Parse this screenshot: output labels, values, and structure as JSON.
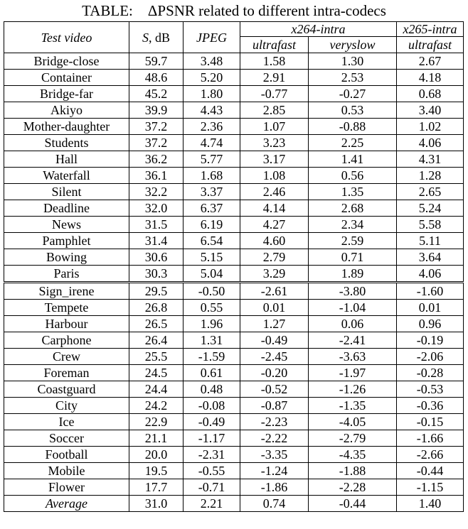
{
  "caption": "TABLE:    ΔPSNR related to different intra-codecs",
  "headers": {
    "test_video": "Test video",
    "s_db": "S, dB",
    "jpeg": "JPEG",
    "x264": "x264-intra",
    "x265": "x265-intra",
    "ultrafast": "ultrafast",
    "veryslow": "veryslow",
    "ultrafast2": "ultrafast"
  },
  "group1": [
    [
      "Bridge-close",
      "59.7",
      "3.48",
      "1.58",
      "1.30",
      "2.67"
    ],
    [
      "Container",
      "48.6",
      "5.20",
      "2.91",
      "2.53",
      "4.18"
    ],
    [
      "Bridge-far",
      "45.2",
      "1.80",
      "-0.77",
      "-0.27",
      "0.68"
    ],
    [
      "Akiyo",
      "39.9",
      "4.43",
      "2.85",
      "0.53",
      "3.40"
    ],
    [
      "Mother-daughter",
      "37.2",
      "2.36",
      "1.07",
      "-0.88",
      "1.02"
    ],
    [
      "Students",
      "37.2",
      "4.74",
      "3.23",
      "2.25",
      "4.06"
    ],
    [
      "Hall",
      "36.2",
      "5.77",
      "3.17",
      "1.41",
      "4.31"
    ],
    [
      "Waterfall",
      "36.1",
      "1.68",
      "1.08",
      "0.56",
      "1.28"
    ],
    [
      "Silent",
      "32.2",
      "3.37",
      "2.46",
      "1.35",
      "2.65"
    ],
    [
      "Deadline",
      "32.0",
      "6.37",
      "4.14",
      "2.68",
      "5.24"
    ],
    [
      "News",
      "31.5",
      "6.19",
      "4.27",
      "2.34",
      "5.58"
    ],
    [
      "Pamphlet",
      "31.4",
      "6.54",
      "4.60",
      "2.59",
      "5.11"
    ],
    [
      "Bowing",
      "30.6",
      "5.15",
      "2.79",
      "0.71",
      "3.64"
    ],
    [
      "Paris",
      "30.3",
      "5.04",
      "3.29",
      "1.89",
      "4.06"
    ]
  ],
  "group2": [
    [
      "Sign_irene",
      "29.5",
      "-0.50",
      "-2.61",
      "-3.80",
      "-1.60"
    ],
    [
      "Tempete",
      "26.8",
      "0.55",
      "0.01",
      "-1.04",
      "0.01"
    ],
    [
      "Harbour",
      "26.5",
      "1.96",
      "1.27",
      "0.06",
      "0.96"
    ],
    [
      "Carphone",
      "26.4",
      "1.31",
      "-0.49",
      "-2.41",
      "-0.19"
    ],
    [
      "Crew",
      "25.5",
      "-1.59",
      "-2.45",
      "-3.63",
      "-2.06"
    ],
    [
      "Foreman",
      "24.5",
      "0.61",
      "-0.20",
      "-1.97",
      "-0.28"
    ],
    [
      "Coastguard",
      "24.4",
      "0.48",
      "-0.52",
      "-1.26",
      "-0.53"
    ],
    [
      "City",
      "24.2",
      "-0.08",
      "-0.87",
      "-1.35",
      "-0.36"
    ],
    [
      "Ice",
      "22.9",
      "-0.49",
      "-2.23",
      "-4.05",
      "-0.15"
    ],
    [
      "Soccer",
      "21.1",
      "-1.17",
      "-2.22",
      "-2.79",
      "-1.66"
    ],
    [
      "Football",
      "20.0",
      "-2.31",
      "-3.35",
      "-4.35",
      "-2.66"
    ],
    [
      "Mobile",
      "19.5",
      "-0.55",
      "-1.24",
      "-1.88",
      "-0.44"
    ],
    [
      "Flower",
      "17.7",
      "-0.71",
      "-1.86",
      "-2.28",
      "-1.15"
    ]
  ],
  "average": [
    "Average",
    "31.0",
    "2.21",
    "0.74",
    "-0.44",
    "1.40"
  ]
}
